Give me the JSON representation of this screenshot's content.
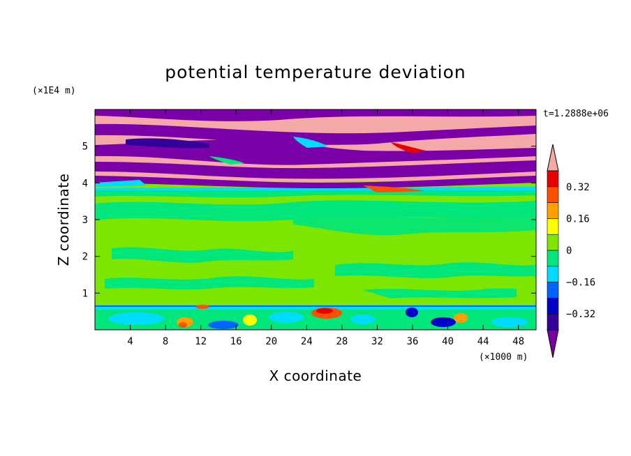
{
  "chart_data": {
    "type": "heatmap",
    "title": "potential temperature deviation",
    "xlabel": "X coordinate",
    "ylabel": "Z coordinate",
    "x_unit": "(×1000 m)",
    "y_unit": "(×1E4 m)",
    "time_label": "t=1.2888e+06",
    "xlim": [
      0,
      50
    ],
    "ylim": [
      0,
      6
    ],
    "x_ticks": [
      4,
      8,
      12,
      16,
      20,
      24,
      28,
      32,
      36,
      40,
      44,
      48
    ],
    "y_ticks": [
      1,
      2,
      3,
      4,
      5
    ],
    "colorbar": {
      "levels": [
        -0.4,
        -0.32,
        -0.24,
        -0.16,
        -0.08,
        0,
        0.08,
        0.16,
        0.24,
        0.32,
        0.4
      ],
      "labels": [
        "0.32",
        "0.16",
        "0",
        "−0.16",
        "−0.32"
      ],
      "label_values": [
        0.32,
        0.16,
        0,
        -0.16,
        -0.32
      ],
      "colors": [
        "#7a00a8",
        "#34009c",
        "#0000c8",
        "#0064ff",
        "#00dcff",
        "#00e67a",
        "#7ce600",
        "#ffff00",
        "#ffa000",
        "#ff5000",
        "#e60000",
        "#f4a8a8"
      ],
      "extend": "both"
    }
  }
}
